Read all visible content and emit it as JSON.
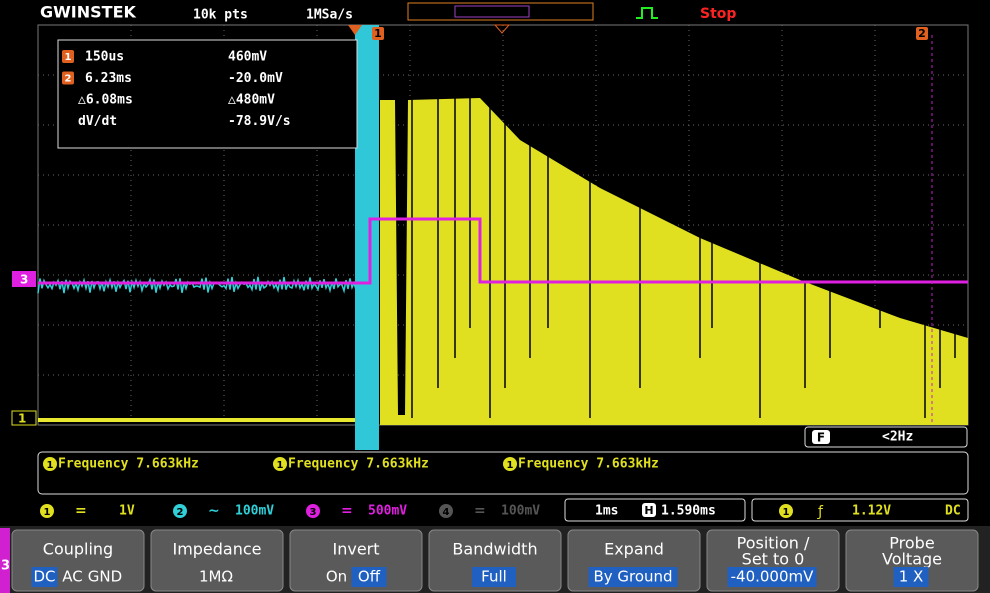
{
  "header": {
    "logo": "GWINSTEK",
    "record_length": "10k pts",
    "sample_rate": "1MSa/s",
    "status": "Stop"
  },
  "cursor": {
    "rows": [
      {
        "marker": "1",
        "time": "150us",
        "volt": "460mV"
      },
      {
        "marker": "2",
        "time": "6.23ms",
        "volt": "-20.0mV"
      },
      {
        "marker": null,
        "time": "△6.08ms",
        "volt": "△480mV"
      },
      {
        "marker": null,
        "time": "dV/dt",
        "volt": "-78.9V/s"
      }
    ],
    "top_markers": [
      "1",
      "2"
    ]
  },
  "channel_labels": [
    "3",
    "1"
  ],
  "filter": {
    "icon": "F",
    "value": "<2Hz"
  },
  "measurements": [
    {
      "channel": "1",
      "text": "Frequency 7.663kHz"
    },
    {
      "channel": "1",
      "text": "Frequency 7.663kHz"
    },
    {
      "channel": "1",
      "text": "Frequency 7.663kHz"
    }
  ],
  "channels": [
    {
      "num": "1",
      "coupling": "=",
      "scale": "1V"
    },
    {
      "num": "2",
      "coupling": "∼",
      "scale": "100mV"
    },
    {
      "num": "3",
      "coupling": "=",
      "scale": "500mV"
    },
    {
      "num": "4",
      "coupling": "=",
      "scale": "100mV"
    }
  ],
  "timebase": {
    "scale": "1ms",
    "icon": "H",
    "position": "1.590ms"
  },
  "trigger": {
    "source": "1",
    "slope": "ƒ",
    "level": "1.12V",
    "coupling": "DC"
  },
  "menu": {
    "tab": "3",
    "buttons": [
      {
        "lines": [
          "Coupling"
        ],
        "options": [
          "DC",
          "AC",
          "GND"
        ],
        "selected": "DC"
      },
      {
        "lines": [
          "Impedance"
        ],
        "options": [
          "1MΩ"
        ],
        "selected": null
      },
      {
        "lines": [
          "Invert"
        ],
        "options": [
          "On",
          "Off"
        ],
        "selected": "Off"
      },
      {
        "lines": [
          "Bandwidth"
        ],
        "options": [
          "Full"
        ],
        "selected": "Full"
      },
      {
        "lines": [
          "Expand"
        ],
        "options": [
          "By Ground"
        ],
        "selected": "By Ground"
      },
      {
        "lines": [
          "Position /",
          "Set to 0"
        ],
        "options": [
          "-40.000mV"
        ],
        "selected": "-40.000mV"
      },
      {
        "lines": [
          "Probe",
          "Voltage"
        ],
        "options": [
          "1 X"
        ],
        "selected": "1 X"
      }
    ]
  }
}
